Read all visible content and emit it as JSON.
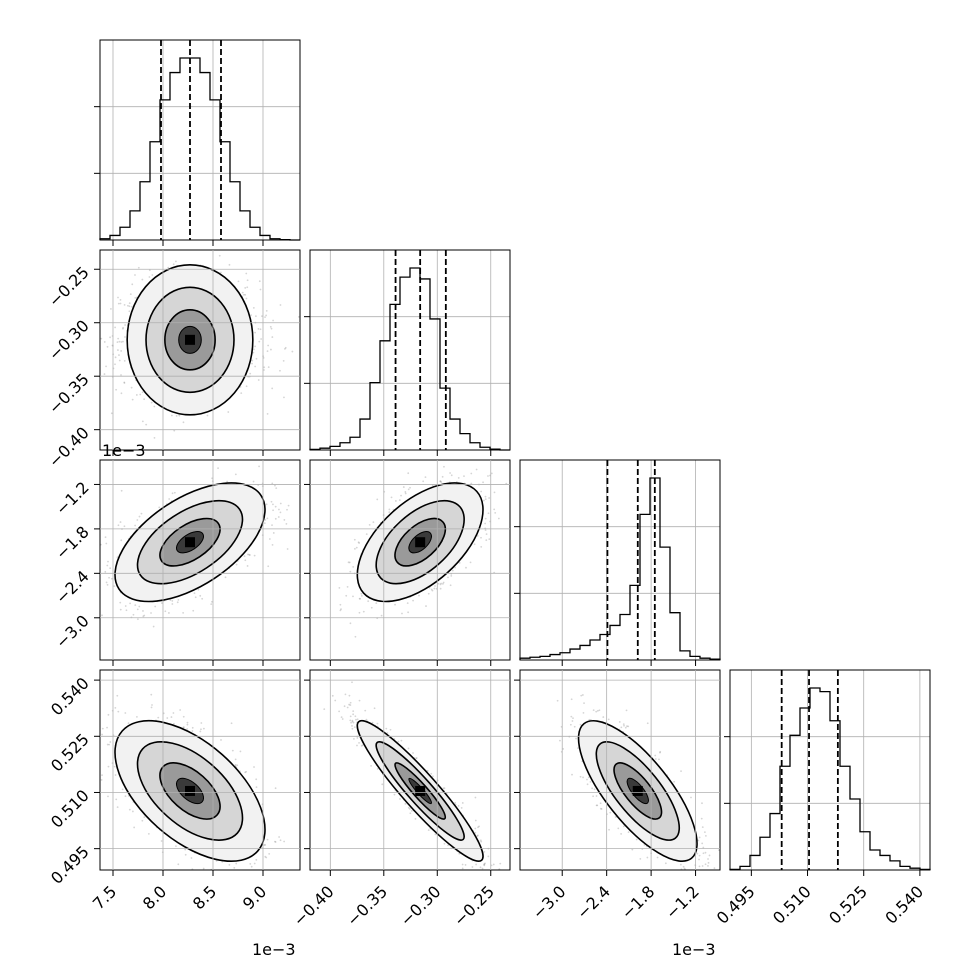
{
  "chart_data": {
    "type": "corner",
    "parameters": [
      {
        "id": "p0",
        "median": 0.00827,
        "q16": 0.00798,
        "q84": 0.00858,
        "range": [
          0.00737,
          0.00937
        ],
        "ticks": [
          0.0075,
          0.008,
          0.0085,
          0.009
        ],
        "tick_labels": [
          "7.5",
          "8.0",
          "8.5",
          "9.0"
        ],
        "offset_text": "1e−3"
      },
      {
        "id": "p1",
        "median": -0.316,
        "q16": -0.339,
        "q84": -0.292,
        "range": [
          -0.419,
          -0.232
        ],
        "ticks": [
          -0.4,
          -0.35,
          -0.3,
          -0.25
        ],
        "tick_labels": [
          "−0.40",
          "−0.35",
          "−0.30",
          "−0.25"
        ],
        "offset_text": ""
      },
      {
        "id": "p2",
        "median": -0.00198,
        "q16": -0.00239,
        "q84": -0.00175,
        "range": [
          -0.00357,
          -0.00087
        ],
        "ticks": [
          -0.003,
          -0.0024,
          -0.0018,
          -0.0012
        ],
        "tick_labels": [
          "−3.0",
          "−2.4",
          "−1.8",
          "−1.2"
        ],
        "offset_text": "1e−3"
      },
      {
        "id": "p3",
        "median": 0.5104,
        "q16": 0.5031,
        "q84": 0.5181,
        "range": [
          0.4893,
          0.5427
        ],
        "ticks": [
          0.495,
          0.51,
          0.525,
          0.54
        ],
        "tick_labels": [
          "0.495",
          "0.510",
          "0.525",
          "0.540"
        ],
        "offset_text": ""
      }
    ],
    "histograms": [
      {
        "param": "p0",
        "counts": [
          0.7,
          2.5,
          7,
          16,
          32,
          54,
          77,
          92,
          100,
          100,
          92,
          77,
          54,
          32,
          16,
          7,
          2.5,
          0.7,
          0.2,
          0
        ]
      },
      {
        "param": "p1",
        "counts": [
          0.3,
          1,
          2,
          4,
          7,
          17,
          37,
          60,
          80,
          95,
          100,
          94,
          72,
          34,
          17,
          9,
          4,
          1.5,
          0.5,
          0
        ]
      },
      {
        "param": "p2",
        "counts": [
          1,
          1.5,
          2,
          3,
          4,
          6,
          8,
          11,
          14,
          19,
          25,
          41,
          80,
          100,
          62,
          26,
          5,
          2,
          1,
          0.5
        ]
      },
      {
        "param": "p3",
        "counts": [
          0.3,
          2,
          8,
          18,
          31,
          57,
          74,
          89,
          100,
          98,
          82,
          57,
          39,
          21,
          11,
          8,
          5,
          2,
          1,
          0.3
        ]
      }
    ],
    "pairs": [
      {
        "x": "p0",
        "y": "p1",
        "correlation": 0.0
      },
      {
        "x": "p0",
        "y": "p2",
        "correlation": 0.55
      },
      {
        "x": "p1",
        "y": "p2",
        "correlation": 0.55
      },
      {
        "x": "p0",
        "y": "p3",
        "correlation": -0.55
      },
      {
        "x": "p1",
        "y": "p3",
        "correlation": -0.93
      },
      {
        "x": "p2",
        "y": "p3",
        "correlation": -0.75
      }
    ],
    "quantile_lines": "dashed",
    "grid": true,
    "title": "",
    "legend": "none"
  }
}
